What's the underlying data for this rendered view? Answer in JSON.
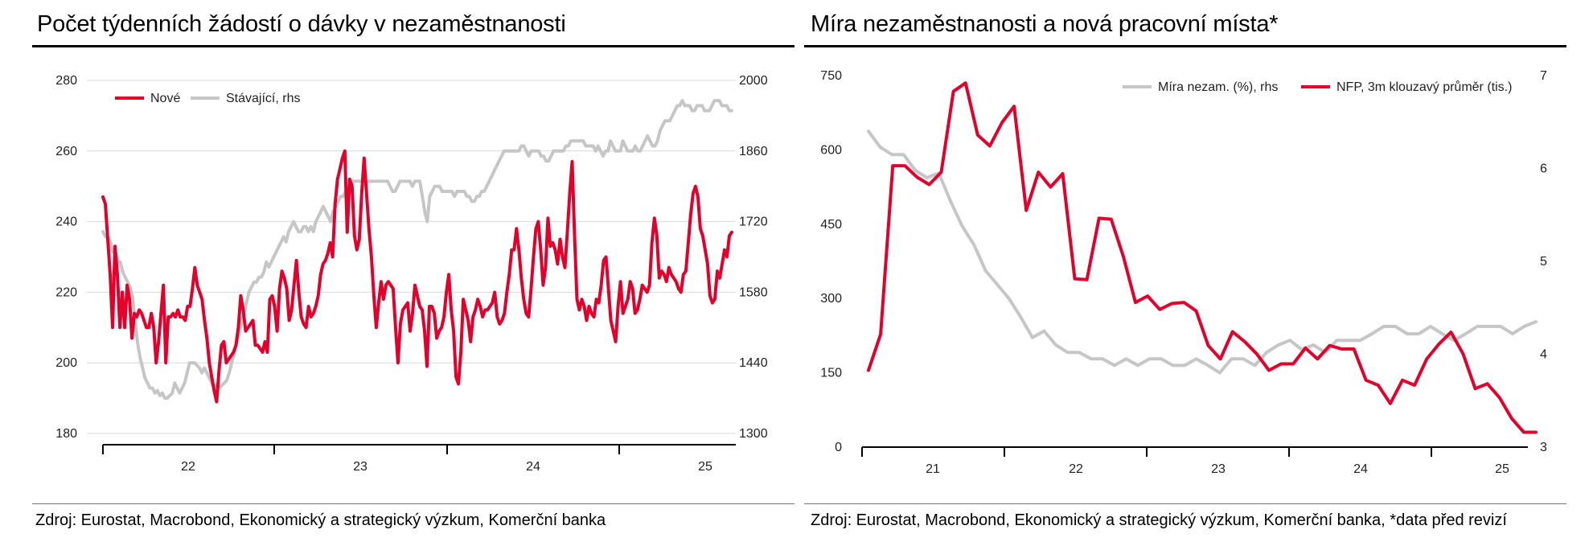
{
  "colors": {
    "red": "#e4002b",
    "gray": "#c6c6c6",
    "grid": "#d9d9d9",
    "axis": "#000000"
  },
  "left": {
    "title": "Počet týdenních žádostí o dávky v nezaměstnanosti",
    "source": "Zdroj: Eurostat, Macrobond, Ekonomický a strategický výzkum, Komerční banka"
  },
  "right": {
    "title": "Míra nezaměstnanosti a nová pracovní místa*",
    "source": "Zdroj: Eurostat, Macrobond, Ekonomický a strategický výzkum, Komerční banka, *data před revizí"
  },
  "chart_data": [
    {
      "type": "line",
      "x": {
        "kind": "weekly",
        "start": "2021-12-04",
        "tick_labels": [
          "22",
          "23",
          "24",
          "25"
        ]
      },
      "y_left": {
        "range": [
          180,
          280
        ],
        "ticks": [
          "180",
          "200",
          "220",
          "240",
          "260",
          "280"
        ]
      },
      "y_right": {
        "range": [
          1300,
          2000
        ],
        "ticks": [
          "1300",
          "1440",
          "1580",
          "1720",
          "1860",
          "2000"
        ]
      },
      "grid": true,
      "legend": "top-left",
      "series": [
        {
          "name": "Nové",
          "axis": "left",
          "color": "red",
          "values": [
            247,
            245,
            235,
            225,
            210,
            233,
            225,
            210,
            220,
            210,
            222,
            218,
            207,
            214,
            213,
            215,
            214,
            212,
            210,
            210,
            214,
            210,
            200,
            206,
            214,
            222,
            200,
            213,
            213,
            214,
            213,
            215,
            213,
            213,
            212,
            216,
            216,
            221,
            227,
            222,
            220,
            218,
            212,
            207,
            200,
            196,
            192,
            189,
            198,
            205,
            206,
            200,
            201,
            202,
            203,
            205,
            210,
            219,
            215,
            209,
            210,
            211,
            212,
            205,
            205,
            204,
            203,
            206,
            203,
            218,
            219,
            216,
            209,
            221,
            226,
            224,
            221,
            212,
            215,
            222,
            229,
            220,
            213,
            211,
            210,
            216,
            213,
            214,
            216,
            219,
            225,
            228,
            229,
            231,
            234,
            230,
            245,
            252,
            255,
            258,
            260,
            237,
            252,
            250,
            236,
            232,
            235,
            248,
            258,
            248,
            238,
            230,
            219,
            210,
            217,
            223,
            218,
            222,
            223,
            222,
            221,
            210,
            200,
            211,
            215,
            216,
            217,
            209,
            214,
            222,
            219,
            216,
            215,
            209,
            199,
            216,
            216,
            214,
            207,
            209,
            210,
            213,
            220,
            225,
            215,
            209,
            196,
            194,
            203,
            218,
            215,
            212,
            206,
            213,
            215,
            218,
            216,
            213,
            215,
            215,
            216,
            217,
            220,
            213,
            211,
            212,
            214,
            220,
            225,
            232,
            232,
            238,
            232,
            224,
            218,
            214,
            213,
            221,
            230,
            238,
            240,
            232,
            222,
            227,
            241,
            233,
            234,
            232,
            228,
            235,
            230,
            227,
            237,
            248,
            257,
            236,
            218,
            215,
            218,
            216,
            212,
            216,
            214,
            213,
            218,
            217,
            222,
            229,
            230,
            221,
            212,
            209,
            206,
            216,
            223,
            214,
            216,
            218,
            223,
            221,
            214,
            215,
            218,
            222,
            221,
            220,
            222,
            234,
            241,
            236,
            224,
            226,
            225,
            223,
            227,
            225,
            224,
            223,
            221,
            220,
            225,
            226,
            234,
            242,
            248,
            250,
            247,
            238,
            236,
            232,
            228,
            219,
            217,
            218,
            226,
            224,
            228,
            232,
            230,
            236,
            237
          ]
        },
        {
          "name": "Stávající, rhs",
          "axis": "right",
          "color": "gray",
          "values": [
            1700,
            1690,
            1690,
            1680,
            1660,
            1660,
            1640,
            1640,
            1620,
            1610,
            1600,
            1590,
            1570,
            1520,
            1480,
            1450,
            1430,
            1410,
            1400,
            1390,
            1390,
            1380,
            1385,
            1375,
            1380,
            1370,
            1370,
            1375,
            1380,
            1400,
            1390,
            1380,
            1390,
            1400,
            1420,
            1440,
            1440,
            1440,
            1435,
            1430,
            1420,
            1430,
            1420,
            1410,
            1400,
            1390,
            1395,
            1390,
            1395,
            1400,
            1405,
            1420,
            1440,
            1460,
            1480,
            1500,
            1520,
            1540,
            1560,
            1580,
            1590,
            1600,
            1600,
            1610,
            1610,
            1620,
            1640,
            1630,
            1640,
            1650,
            1660,
            1670,
            1680,
            1690,
            1680,
            1700,
            1710,
            1720,
            1710,
            1700,
            1700,
            1710,
            1710,
            1700,
            1710,
            1700,
            1720,
            1730,
            1740,
            1750,
            1740,
            1730,
            1720,
            1740,
            1750,
            1760,
            1770,
            1770,
            1780,
            1790,
            1790,
            1800,
            1800,
            1800,
            1800,
            1800,
            1800,
            1800,
            1800,
            1800,
            1800,
            1800,
            1800,
            1800,
            1800,
            1800,
            1790,
            1780,
            1780,
            1790,
            1800,
            1800,
            1800,
            1800,
            1800,
            1790,
            1800,
            1800,
            1800,
            1770,
            1740,
            1720,
            1770,
            1780,
            1790,
            1790,
            1790,
            1780,
            1780,
            1780,
            1780,
            1780,
            1770,
            1780,
            1780,
            1780,
            1780,
            1770,
            1770,
            1760,
            1760,
            1770,
            1770,
            1780,
            1780,
            1790,
            1800,
            1810,
            1820,
            1830,
            1840,
            1850,
            1860,
            1860,
            1860,
            1860,
            1860,
            1860,
            1860,
            1870,
            1870,
            1860,
            1850,
            1860,
            1860,
            1860,
            1860,
            1850,
            1850,
            1840,
            1840,
            1850,
            1860,
            1860,
            1860,
            1860,
            1860,
            1870,
            1870,
            1880,
            1880,
            1880,
            1880,
            1880,
            1880,
            1870,
            1870,
            1870,
            1870,
            1860,
            1870,
            1860,
            1850,
            1860,
            1860,
            1880,
            1870,
            1860,
            1860,
            1860,
            1880,
            1870,
            1860,
            1860,
            1860,
            1870,
            1860,
            1860,
            1870,
            1880,
            1890,
            1880,
            1870,
            1870,
            1880,
            1900,
            1910,
            1920,
            1920,
            1920,
            1930,
            1940,
            1950,
            1950,
            1960,
            1950,
            1950,
            1950,
            1940,
            1940,
            1950,
            1950,
            1950,
            1940,
            1940,
            1940,
            1950,
            1960,
            1960,
            1960,
            1950,
            1950,
            1950,
            1940,
            1940
          ]
        }
      ]
    },
    {
      "type": "line",
      "x": {
        "kind": "monthly",
        "start": "2020-06",
        "tick_labels": [
          "21",
          "22",
          "23",
          "24",
          "25"
        ]
      },
      "y_left": {
        "range": [
          0,
          750
        ],
        "ticks": [
          "0",
          "150",
          "300",
          "450",
          "600",
          "750"
        ]
      },
      "y_right": {
        "range": [
          3,
          7
        ],
        "ticks": [
          "3",
          "4",
          "5",
          "6",
          "7"
        ]
      },
      "grid": false,
      "legend": "top-right",
      "series": [
        {
          "name": "Míra nezam. (%), rhs",
          "axis": "right",
          "color": "gray",
          "values": [
            6.4,
            6.23,
            6.15,
            6.15,
            5.98,
            5.9,
            5.95,
            5.65,
            5.38,
            5.18,
            4.9,
            4.75,
            4.6,
            4.4,
            4.18,
            4.25,
            4.1,
            4.02,
            4.02,
            3.95,
            3.95,
            3.88,
            3.95,
            3.88,
            3.95,
            3.95,
            3.88,
            3.88,
            3.95,
            3.88,
            3.8,
            3.95,
            3.95,
            3.88,
            4.02,
            4.1,
            4.15,
            4.05,
            4.1,
            4.02,
            4.15,
            4.15,
            4.15,
            4.22,
            4.3,
            4.3,
            4.22,
            4.22,
            4.3,
            4.22,
            4.15,
            4.22,
            4.3,
            4.3,
            4.3,
            4.22,
            4.3,
            4.35
          ]
        },
        {
          "name": "NFP, 3m klouzavý průměr (tis.)",
          "axis": "left",
          "color": "red",
          "values": [
            155,
            228,
            568,
            568,
            545,
            530,
            555,
            718,
            735,
            630,
            608,
            655,
            688,
            478,
            555,
            525,
            552,
            340,
            338,
            462,
            460,
            385,
            292,
            305,
            278,
            290,
            292,
            275,
            205,
            178,
            233,
            213,
            188,
            155,
            168,
            168,
            200,
            178,
            205,
            198,
            198,
            135,
            125,
            88,
            135,
            125,
            178,
            208,
            232,
            188,
            118,
            128,
            100,
            58,
            30,
            30
          ]
        }
      ]
    }
  ]
}
